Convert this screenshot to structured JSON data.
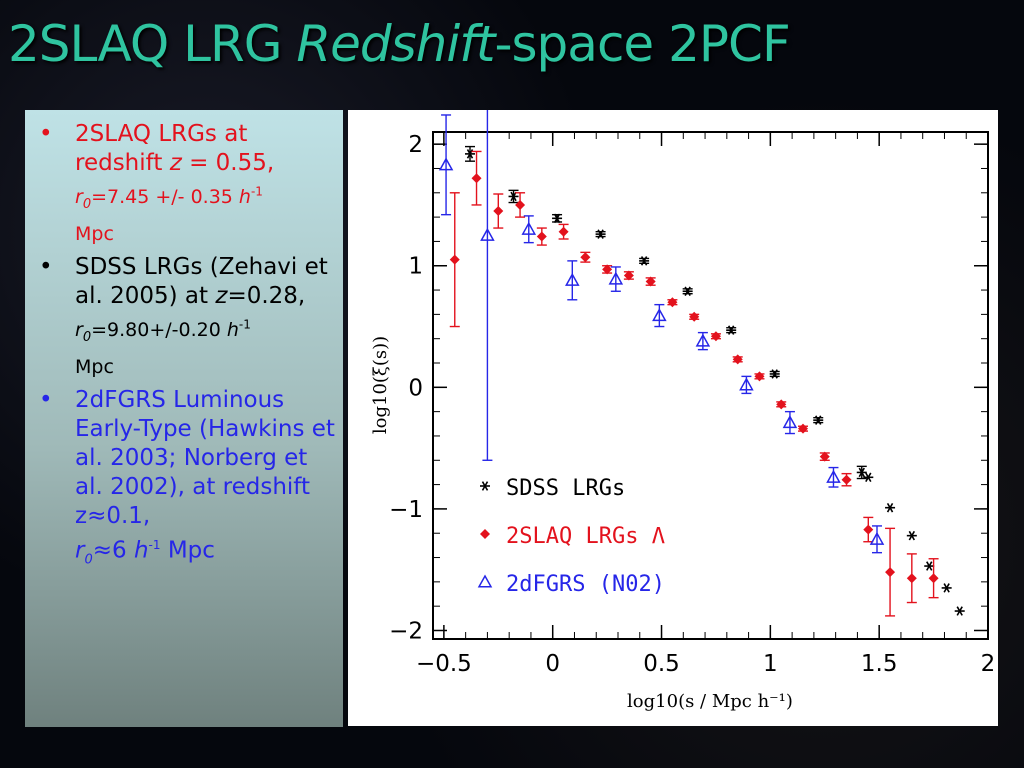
{
  "slide": {
    "title_part1": "2SLAQ LRG ",
    "title_italic": "Redshift",
    "title_part2": "-space 2PCF",
    "colors": {
      "title": "#2fc4a0",
      "red": "#e3121d",
      "blue": "#2626e8",
      "black": "#000000"
    }
  },
  "bullets": [
    {
      "color": "#e3121d",
      "line1": "2SLAQ LRGs at redshift ",
      "z_var": "z",
      "z_val": " = 0.55,",
      "r_var": "r",
      "r_sub": "0",
      "r_val": "=7.45 +/- 0.35 ",
      "h_var": "h",
      "h_exp": "-1",
      "unit": "Mpc"
    },
    {
      "color": "#000000",
      "line1": "SDSS LRGs (Zehavi et al. 2005) at ",
      "z_var": "z",
      "z_val": "=0.28,",
      "r_var": "r",
      "r_sub": "0",
      "r_val": "=9.80+/-0.20 ",
      "h_var": "h",
      "h_exp": "-1",
      "unit": "Mpc"
    },
    {
      "color": "#2626e8",
      "line1": "2dFGRS Luminous Early-Type (Hawkins et al. 2003; Norberg et al. 2002), at redshift z≈0.1,",
      "r_var": "r",
      "r_sub": "0",
      "r_val": "≈6 ",
      "h_var": "h",
      "h_exp": "-1",
      "unit": " Mpc"
    }
  ],
  "chart_data": {
    "type": "scatter",
    "xlabel": "log10(s / Mpc h⁻¹)",
    "ylabel": "log10(ξ(s))",
    "xlim": [
      -0.5,
      2.0
    ],
    "ylim": [
      -2.0,
      2.0
    ],
    "x_ticks": [
      "−0.5",
      "0",
      "0.5",
      "1",
      "1.5",
      "2"
    ],
    "x_tick_values": [
      -0.5,
      0,
      0.5,
      1,
      1.5,
      2
    ],
    "y_ticks": [
      "2",
      "1",
      "0",
      "−1",
      "−2"
    ],
    "y_tick_values": [
      2,
      1,
      0,
      -1,
      -2
    ],
    "legend_placement": "bottom-left",
    "series": [
      {
        "name": "SDSS LRGs",
        "marker": "asterisk",
        "color": "#000000",
        "points": [
          {
            "x": -0.38,
            "y": 1.92,
            "err": 0.06
          },
          {
            "x": -0.18,
            "y": 1.57,
            "err": 0.05
          },
          {
            "x": 0.02,
            "y": 1.39,
            "err": 0.03
          },
          {
            "x": 0.22,
            "y": 1.26,
            "err": 0.02
          },
          {
            "x": 0.42,
            "y": 1.04,
            "err": 0.02
          },
          {
            "x": 0.62,
            "y": 0.79,
            "err": 0.02
          },
          {
            "x": 0.82,
            "y": 0.47,
            "err": 0.02
          },
          {
            "x": 1.02,
            "y": 0.11,
            "err": 0.02
          },
          {
            "x": 1.22,
            "y": -0.27,
            "err": 0.02
          },
          {
            "x": 1.42,
            "y": -0.7,
            "err": 0.05
          },
          {
            "x": 1.45,
            "y": -0.74,
            "err": 0
          },
          {
            "x": 1.55,
            "y": -0.99,
            "err": 0
          },
          {
            "x": 1.65,
            "y": -1.22,
            "err": 0
          },
          {
            "x": 1.73,
            "y": -1.47,
            "err": 0
          },
          {
            "x": 1.81,
            "y": -1.65,
            "err": 0
          },
          {
            "x": 1.87,
            "y": -1.84,
            "err": 0
          }
        ]
      },
      {
        "name": "2SLAQ LRGs Λ",
        "marker": "diamond",
        "color": "#e3121d",
        "points": [
          {
            "x": -0.45,
            "y": 1.05,
            "err": 0.55
          },
          {
            "x": -0.35,
            "y": 1.72,
            "err": 0.22
          },
          {
            "x": -0.25,
            "y": 1.45,
            "err": 0.14
          },
          {
            "x": -0.15,
            "y": 1.5,
            "err": 0.1
          },
          {
            "x": -0.05,
            "y": 1.24,
            "err": 0.07
          },
          {
            "x": 0.05,
            "y": 1.28,
            "err": 0.06
          },
          {
            "x": 0.15,
            "y": 1.07,
            "err": 0.04
          },
          {
            "x": 0.25,
            "y": 0.97,
            "err": 0.03
          },
          {
            "x": 0.35,
            "y": 0.92,
            "err": 0.03
          },
          {
            "x": 0.45,
            "y": 0.87,
            "err": 0.03
          },
          {
            "x": 0.55,
            "y": 0.7,
            "err": 0.02
          },
          {
            "x": 0.65,
            "y": 0.58,
            "err": 0.02
          },
          {
            "x": 0.75,
            "y": 0.42,
            "err": 0.02
          },
          {
            "x": 0.85,
            "y": 0.23,
            "err": 0.02
          },
          {
            "x": 0.95,
            "y": 0.09,
            "err": 0.02
          },
          {
            "x": 1.05,
            "y": -0.14,
            "err": 0.02
          },
          {
            "x": 1.15,
            "y": -0.34,
            "err": 0.02
          },
          {
            "x": 1.25,
            "y": -0.57,
            "err": 0.03
          },
          {
            "x": 1.35,
            "y": -0.76,
            "err": 0.05
          },
          {
            "x": 1.45,
            "y": -1.17,
            "err": 0.1
          },
          {
            "x": 1.55,
            "y": -1.52,
            "err": 0.36
          },
          {
            "x": 1.65,
            "y": -1.57,
            "err": 0.2
          },
          {
            "x": 1.75,
            "y": -1.57,
            "err": 0.16
          }
        ]
      },
      {
        "name": "2dFGRS (N02)",
        "marker": "triangle",
        "color": "#2626e8",
        "points": [
          {
            "x": -0.49,
            "y": 1.83,
            "err": 0.41
          },
          {
            "x": -0.3,
            "y": 1.25,
            "err": 1.85
          },
          {
            "x": -0.11,
            "y": 1.3,
            "err": 0.11
          },
          {
            "x": 0.09,
            "y": 0.88,
            "err": 0.16
          },
          {
            "x": 0.29,
            "y": 0.89,
            "err": 0.1
          },
          {
            "x": 0.49,
            "y": 0.59,
            "err": 0.09
          },
          {
            "x": 0.69,
            "y": 0.38,
            "err": 0.07
          },
          {
            "x": 0.89,
            "y": 0.02,
            "err": 0.07
          },
          {
            "x": 1.09,
            "y": -0.29,
            "err": 0.09
          },
          {
            "x": 1.29,
            "y": -0.74,
            "err": 0.08
          },
          {
            "x": 1.49,
            "y": -1.25,
            "err": 0.11
          }
        ]
      }
    ]
  }
}
